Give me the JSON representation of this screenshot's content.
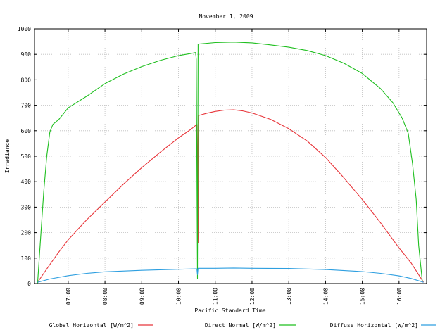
{
  "chart_data": {
    "type": "line",
    "title": "November 1, 2009",
    "xlabel": "Pacific Standard Time",
    "ylabel": "Irradiance",
    "xlim": [
      "06:05",
      "16:45"
    ],
    "ylim": [
      0,
      1000
    ],
    "yticks": [
      0,
      100,
      200,
      300,
      400,
      500,
      600,
      700,
      800,
      900,
      1000
    ],
    "xticks": [
      "07:00",
      "08:00",
      "09:00",
      "10:00",
      "11:00",
      "12:00",
      "13:00",
      "14:00",
      "15:00",
      "16:00"
    ],
    "grid": true,
    "legend_position": "bottom",
    "series": [
      {
        "name": "Global Horizontal [W/m^2]",
        "color": "#e8353a",
        "points": [
          [
            "06:10",
            5
          ],
          [
            "06:20",
            40
          ],
          [
            "06:30",
            75
          ],
          [
            "06:45",
            125
          ],
          [
            "07:00",
            172
          ],
          [
            "07:30",
            250
          ],
          [
            "08:00",
            320
          ],
          [
            "08:30",
            390
          ],
          [
            "09:00",
            455
          ],
          [
            "09:30",
            515
          ],
          [
            "10:00",
            572
          ],
          [
            "10:20",
            605
          ],
          [
            "10:30",
            625
          ],
          [
            "10:31",
            400
          ],
          [
            "10:32",
            160
          ],
          [
            "10:33",
            660
          ],
          [
            "10:45",
            668
          ],
          [
            "11:00",
            676
          ],
          [
            "11:15",
            681
          ],
          [
            "11:30",
            682
          ],
          [
            "11:45",
            678
          ],
          [
            "12:00",
            670
          ],
          [
            "12:30",
            645
          ],
          [
            "13:00",
            608
          ],
          [
            "13:30",
            560
          ],
          [
            "14:00",
            495
          ],
          [
            "14:30",
            415
          ],
          [
            "15:00",
            330
          ],
          [
            "15:30",
            238
          ],
          [
            "16:00",
            140
          ],
          [
            "16:20",
            80
          ],
          [
            "16:40",
            5
          ]
        ]
      },
      {
        "name": "Direct Normal [W/m^2]",
        "color": "#1fbf1f",
        "points": [
          [
            "06:10",
            2
          ],
          [
            "06:15",
            180
          ],
          [
            "06:20",
            360
          ],
          [
            "06:25",
            500
          ],
          [
            "06:30",
            595
          ],
          [
            "06:35",
            625
          ],
          [
            "06:45",
            645
          ],
          [
            "07:00",
            690
          ],
          [
            "07:30",
            735
          ],
          [
            "08:00",
            785
          ],
          [
            "08:30",
            822
          ],
          [
            "09:00",
            852
          ],
          [
            "09:30",
            876
          ],
          [
            "10:00",
            895
          ],
          [
            "10:20",
            903
          ],
          [
            "10:28",
            907
          ],
          [
            "10:29",
            880
          ],
          [
            "10:31",
            20
          ],
          [
            "10:32",
            940
          ],
          [
            "11:00",
            946
          ],
          [
            "11:30",
            948
          ],
          [
            "12:00",
            945
          ],
          [
            "12:30",
            937
          ],
          [
            "13:00",
            928
          ],
          [
            "13:30",
            915
          ],
          [
            "14:00",
            895
          ],
          [
            "14:30",
            865
          ],
          [
            "15:00",
            825
          ],
          [
            "15:30",
            765
          ],
          [
            "15:50",
            710
          ],
          [
            "16:05",
            650
          ],
          [
            "16:15",
            590
          ],
          [
            "16:22",
            470
          ],
          [
            "16:28",
            330
          ],
          [
            "16:32",
            150
          ],
          [
            "16:38",
            8
          ]
        ]
      },
      {
        "name": "Diffuse Horizontal [W/m^2]",
        "color": "#2e9fe0",
        "points": [
          [
            "06:10",
            5
          ],
          [
            "06:30",
            18
          ],
          [
            "07:00",
            31
          ],
          [
            "07:30",
            40
          ],
          [
            "08:00",
            46
          ],
          [
            "09:00",
            52
          ],
          [
            "10:00",
            56
          ],
          [
            "10:30",
            58
          ],
          [
            "10:31",
            35
          ],
          [
            "10:32",
            60
          ],
          [
            "11:00",
            60
          ],
          [
            "11:30",
            61
          ],
          [
            "12:00",
            60
          ],
          [
            "13:00",
            59
          ],
          [
            "14:00",
            55
          ],
          [
            "15:00",
            47
          ],
          [
            "15:30",
            40
          ],
          [
            "16:00",
            30
          ],
          [
            "16:20",
            20
          ],
          [
            "16:40",
            5
          ]
        ]
      }
    ]
  }
}
